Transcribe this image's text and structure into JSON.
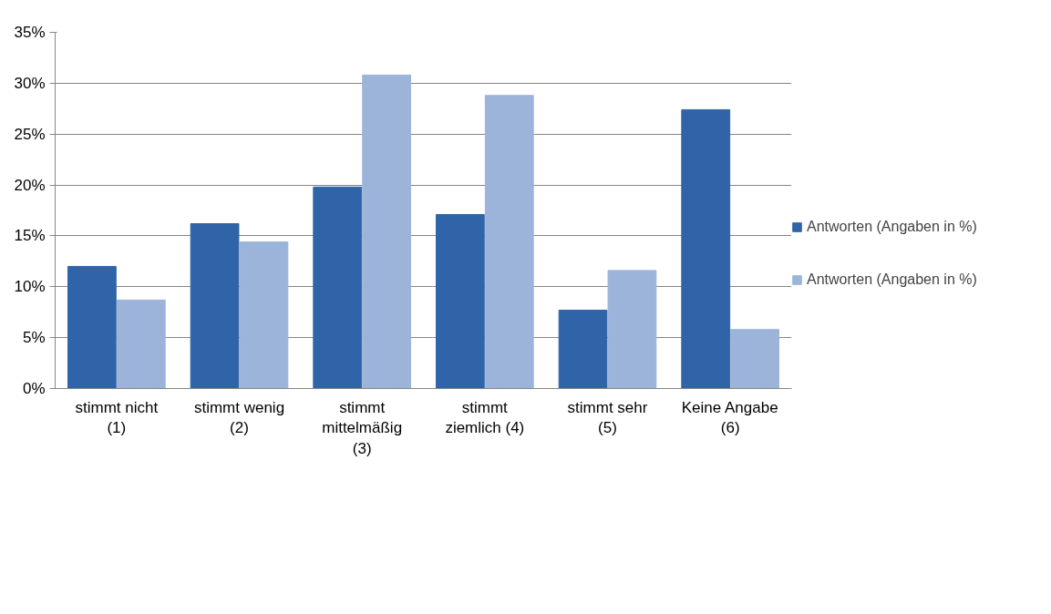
{
  "chart_data": {
    "type": "bar",
    "categories": [
      "stimmt nicht (1)",
      "stimmt wenig (2)",
      "stimmt mittelmäßig (3)",
      "stimmt ziemlich (4)",
      "stimmt sehr (5)",
      "Keine Angabe (6)"
    ],
    "series": [
      {
        "name": "Antworten (Angaben in %)",
        "color": "#2f65a8",
        "values": [
          12.0,
          16.2,
          19.8,
          17.1,
          7.7,
          27.4
        ]
      },
      {
        "name": "Antworten (Angaben in %)",
        "color": "#9cb4da",
        "values": [
          8.7,
          14.4,
          30.8,
          28.8,
          11.6,
          5.8
        ]
      }
    ],
    "ylim": [
      0,
      35
    ],
    "yticks": [
      {
        "value": 0,
        "label": "0%"
      },
      {
        "value": 5,
        "label": "5%"
      },
      {
        "value": 10,
        "label": "10%"
      },
      {
        "value": 15,
        "label": "15%"
      },
      {
        "value": 20,
        "label": "20%"
      },
      {
        "value": 25,
        "label": "25%"
      },
      {
        "value": 30,
        "label": "30%"
      },
      {
        "value": 35,
        "label": "35%"
      }
    ],
    "grid": "y",
    "legend": "right"
  }
}
